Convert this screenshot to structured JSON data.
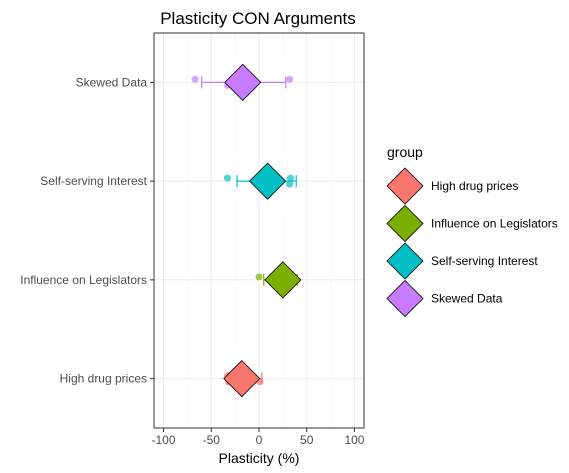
{
  "chart_data": {
    "type": "scatter",
    "title": "Plasticity CON Arguments",
    "xlabel": "Plasticity (%)",
    "ylabel": "",
    "xlim": [
      -110,
      110
    ],
    "xticks": [
      -100,
      -50,
      0,
      50,
      100
    ],
    "xtick_labels": [
      "-100",
      "-50",
      "0",
      "50",
      "100"
    ],
    "categories": [
      "High drug prices",
      "Influence on Legislators",
      "Self-serving Interest",
      "Skewed Data"
    ],
    "grid": true,
    "legend": {
      "title": "group",
      "position": "right",
      "entries": [
        "High drug prices",
        "Influence on Legislators",
        "Self-serving Interest",
        "Skewed Data"
      ]
    },
    "series": [
      {
        "name": "High drug prices",
        "color": "#F8766D",
        "mean": -18,
        "ci": [
          -33,
          3
        ],
        "points": [
          -33,
          -32,
          -18,
          1
        ]
      },
      {
        "name": "Influence on Legislators",
        "color": "#7CAE00",
        "mean": 25,
        "ci": [
          5,
          40
        ],
        "points": [
          0,
          25,
          35
        ]
      },
      {
        "name": "Self-serving Interest",
        "color": "#00BFC4",
        "mean": 9,
        "ci": [
          -23,
          39
        ],
        "points": [
          -33,
          32,
          33
        ]
      },
      {
        "name": "Skewed Data",
        "color": "#C77CFF",
        "mean": -17,
        "ci": [
          -60,
          28
        ],
        "points": [
          -67,
          -33,
          32
        ]
      }
    ]
  }
}
